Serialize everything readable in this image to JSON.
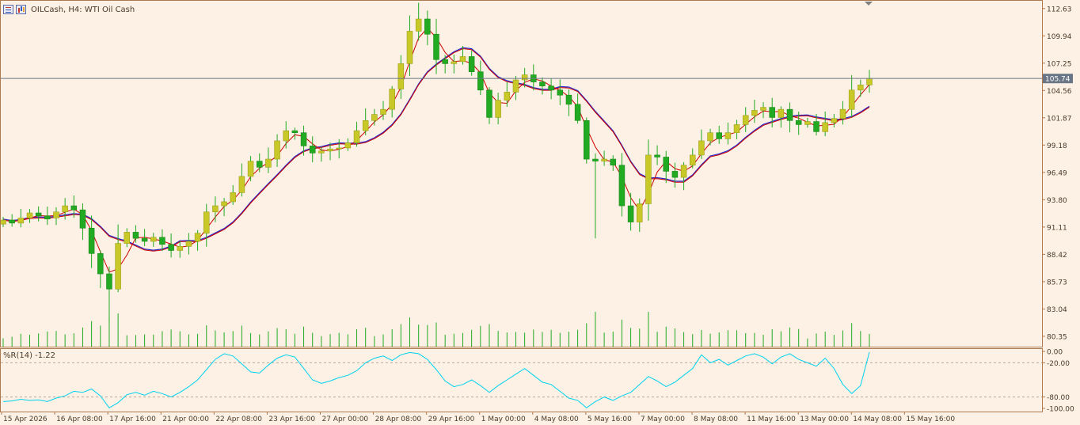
{
  "header": {
    "symbol_title": "OILCash, H4:  WTI Oil Cash",
    "icons": [
      "price-list-icon",
      "bar-chart-icon"
    ]
  },
  "colors": {
    "background": "#fcf1e4",
    "frame": "#b07a50",
    "axis_text": "#4a3a2a",
    "bull_candle": "#c8c828",
    "bear_candle": "#22aa22",
    "wick": "#22aa22",
    "ma_fast": "#cc0000",
    "ma_slow_red": "#cc0000",
    "ma_slow_blue": "#2828c8",
    "volume": "#22aa22",
    "wpr_line": "#00d2f0",
    "price_line": "#6a7686",
    "price_tag_bg": "#6a7686",
    "level_line": "#b8a898"
  },
  "indicator": {
    "label": "%R(14) -1.22",
    "axis_labels": [
      "0.00",
      "-20.00",
      "-80.00",
      "-100.00"
    ]
  },
  "chart_data": [
    {
      "type": "candlestick",
      "title": "",
      "price_axis_labels": [
        "112.63",
        "109.94",
        "107.25",
        "104.56",
        "101.87",
        "99.18",
        "96.49",
        "93.80",
        "91.11",
        "88.42",
        "85.73",
        "83.04",
        "80.35"
      ],
      "ylim": [
        79.33,
        113.47
      ],
      "current_price": 105.74,
      "current_price_label": "105.74",
      "time_labels": [
        "15 Apr 2026",
        "16 Apr 08:00",
        "17 Apr 16:00",
        "21 Apr 00:00",
        "22 Apr 08:00",
        "23 Apr 16:00",
        "27 Apr 00:00",
        "28 Apr 08:00",
        "29 Apr 16:00",
        "1 May 00:00",
        "4 May 08:00",
        "5 May 16:00",
        "7 May 00:00",
        "8 May 08:00",
        "11 May 16:00",
        "13 May 00:00",
        "14 May 08:00",
        "15 May 16:00"
      ],
      "close_path": [
        91.8,
        91.5,
        92.0,
        92.5,
        92.2,
        91.9,
        92.6,
        93.2,
        92.8,
        91.0,
        88.5,
        86.5,
        85.0,
        89.5,
        90.6,
        90.0,
        89.7,
        90.1,
        89.4,
        88.8,
        89.2,
        89.7,
        90.5,
        92.6,
        93.2,
        93.6,
        94.5,
        96.1,
        97.6,
        97.0,
        97.8,
        99.6,
        100.6,
        100.4,
        99.1,
        98.4,
        98.6,
        98.8,
        98.9,
        99.4,
        100.6,
        101.6,
        102.2,
        102.7,
        104.7,
        107.2,
        110.4,
        111.6,
        110.1,
        107.6,
        107.2,
        107.4,
        107.9,
        106.4,
        104.6,
        101.9,
        103.6,
        104.4,
        105.6,
        106.1,
        105.4,
        105.0,
        104.6,
        104.1,
        103.2,
        101.6,
        97.8,
        97.6,
        97.8,
        97.2,
        93.2,
        91.6,
        93.4,
        98.2,
        98.0,
        96.6,
        96.0,
        97.2,
        98.2,
        99.6,
        100.4,
        99.8,
        100.4,
        101.2,
        102.1,
        102.6,
        102.9,
        101.9,
        102.7,
        101.6,
        101.2,
        101.5,
        100.5,
        101.4,
        101.8,
        102.7,
        104.6,
        105.1,
        105.74
      ],
      "open_path": [
        91.4,
        91.8,
        91.5,
        92.0,
        92.5,
        92.2,
        92.0,
        92.6,
        93.2,
        92.8,
        91.0,
        88.5,
        86.5,
        85.0,
        89.5,
        90.6,
        90.0,
        89.7,
        90.1,
        89.4,
        88.8,
        89.2,
        89.7,
        90.5,
        92.6,
        93.2,
        93.6,
        94.5,
        96.1,
        97.6,
        97.0,
        97.8,
        99.6,
        100.6,
        100.4,
        99.1,
        98.4,
        98.6,
        98.8,
        98.9,
        99.4,
        100.6,
        101.6,
        102.2,
        102.7,
        104.7,
        107.2,
        110.4,
        111.6,
        110.1,
        107.6,
        107.2,
        107.4,
        107.9,
        106.4,
        104.6,
        101.9,
        103.6,
        104.4,
        105.6,
        106.1,
        105.4,
        105.0,
        104.6,
        104.1,
        103.2,
        101.6,
        97.8,
        97.6,
        97.8,
        97.2,
        93.2,
        91.6,
        93.4,
        98.2,
        98.0,
        96.6,
        96.0,
        97.2,
        98.2,
        99.6,
        100.4,
        99.8,
        100.4,
        101.2,
        102.1,
        102.6,
        102.9,
        101.9,
        102.7,
        101.6,
        101.2,
        101.5,
        100.5,
        101.4,
        101.8,
        102.7,
        104.6,
        105.1
      ],
      "wpr_path": [
        -88,
        -87,
        -84,
        -86,
        -85,
        -88,
        -82,
        -78,
        -70,
        -72,
        -66,
        -78,
        -99,
        -90,
        -76,
        -72,
        -77,
        -70,
        -74,
        -80,
        -72,
        -62,
        -50,
        -32,
        -14,
        -4,
        -8,
        -22,
        -36,
        -38,
        -24,
        -12,
        -6,
        -10,
        -30,
        -50,
        -56,
        -52,
        -46,
        -42,
        -34,
        -20,
        -12,
        -8,
        -16,
        -6,
        -2,
        -4,
        -14,
        -32,
        -52,
        -62,
        -58,
        -50,
        -60,
        -72,
        -60,
        -50,
        -40,
        -30,
        -42,
        -54,
        -58,
        -70,
        -82,
        -86,
        -99,
        -88,
        -80,
        -86,
        -78,
        -72,
        -58,
        -44,
        -52,
        -62,
        -54,
        -42,
        -30,
        -6,
        -20,
        -14,
        -24,
        -16,
        -8,
        -4,
        -10,
        -22,
        -10,
        -4,
        -14,
        -20,
        -26,
        -12,
        -30,
        -58,
        -74,
        -60,
        -1.22
      ]
    }
  ]
}
